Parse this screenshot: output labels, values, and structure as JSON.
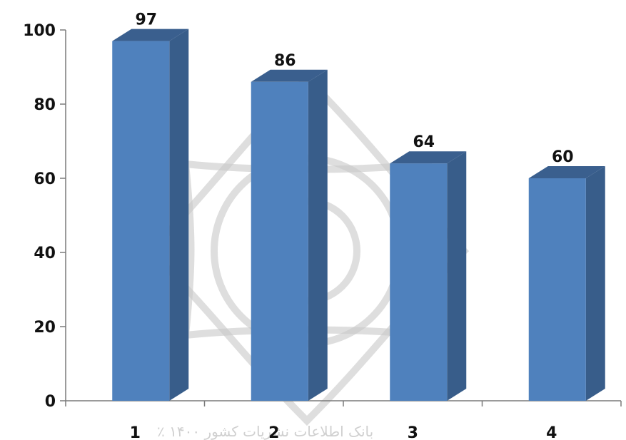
{
  "chart_data": {
    "type": "bar",
    "categories": [
      "1",
      "2",
      "3",
      "4"
    ],
    "values": [
      97,
      86,
      64,
      60
    ],
    "data_labels": [
      "97",
      "86",
      "64",
      "60"
    ],
    "title": "",
    "xlabel": "",
    "ylabel": "",
    "ylim": [
      0,
      100
    ],
    "yticks": [
      0,
      20,
      40,
      60,
      80,
      100
    ],
    "ytick_labels": [
      "0",
      "20",
      "40",
      "60",
      "80",
      "100"
    ],
    "grid": false,
    "legend": "none",
    "bar_style": "3d",
    "colors": {
      "bar_front": "#4f81bd",
      "bar_side": "#385d8a",
      "bar_top": "#3a5f8e",
      "axis": "#7a7a7a",
      "watermark": "#c8c8c8"
    }
  }
}
